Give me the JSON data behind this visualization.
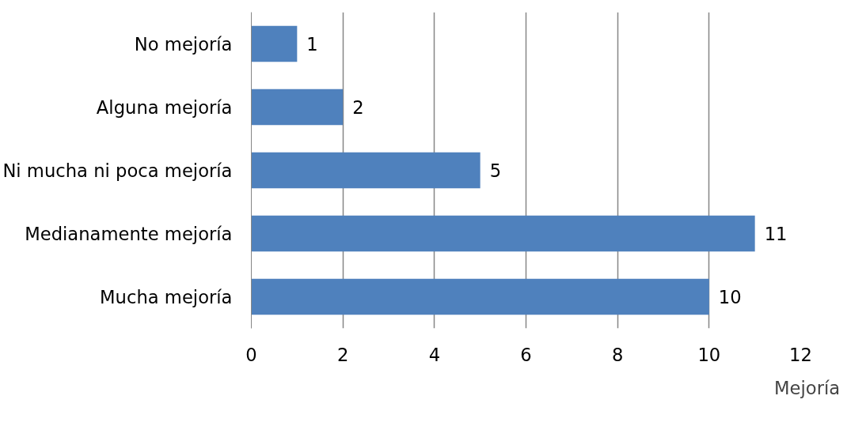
{
  "chart_data": {
    "type": "bar",
    "orientation": "horizontal",
    "categories": [
      "No mejoría",
      "Alguna mejoría",
      "Ni mucha ni poca mejoría",
      "Medianamente mejoría",
      "Mucha mejoría"
    ],
    "series": [
      {
        "name": "Mejoría",
        "color": "#4f81bd",
        "values": [
          1,
          2,
          5,
          11,
          10
        ]
      }
    ],
    "xlim": [
      0,
      12
    ],
    "xticks": [
      0,
      2,
      4,
      6,
      8,
      10,
      12
    ],
    "grid": "x",
    "legend": "bottom",
    "data_labels": true
  }
}
